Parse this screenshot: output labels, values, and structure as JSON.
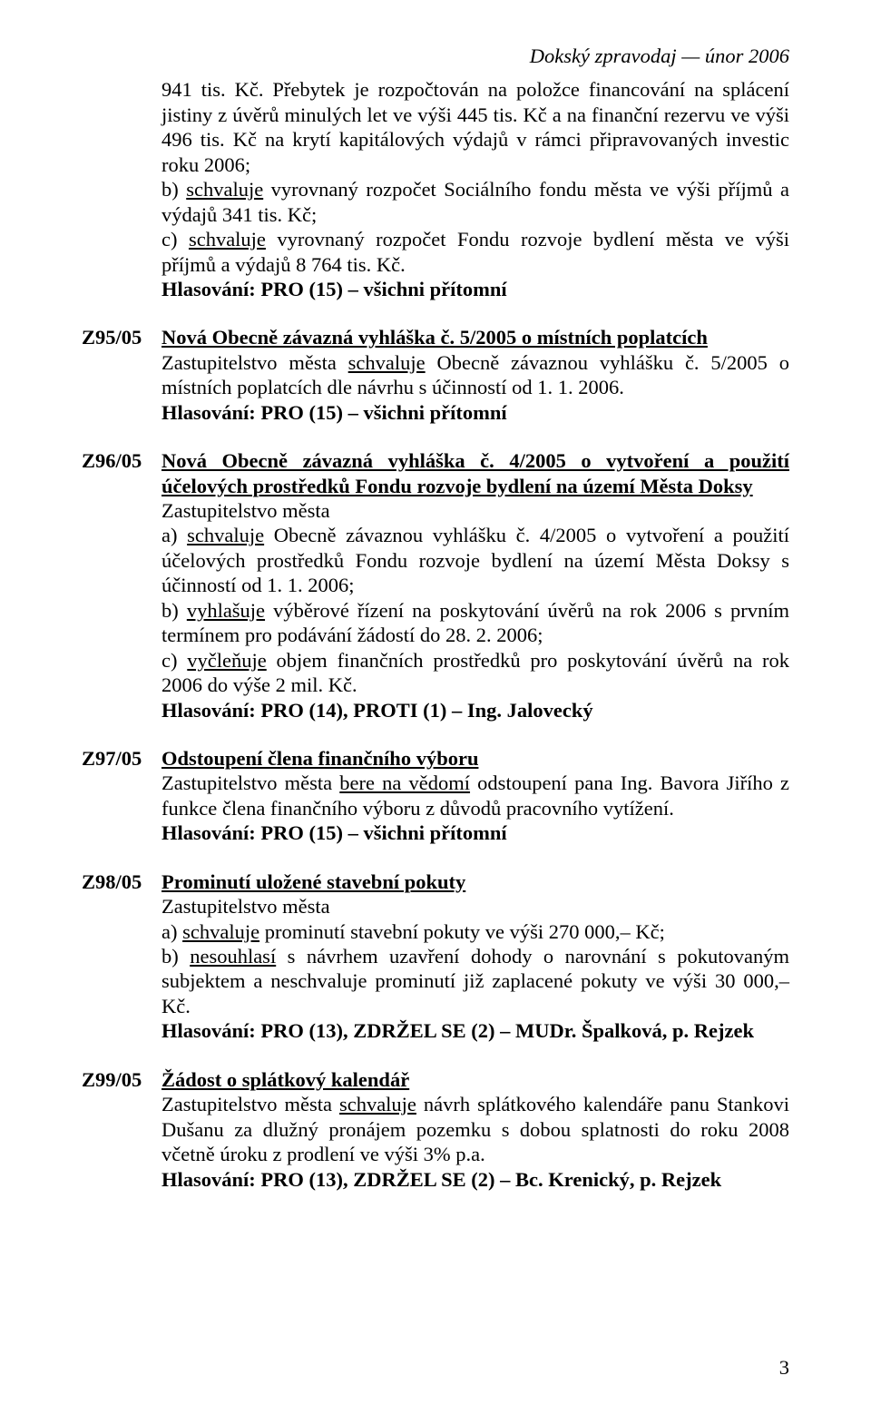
{
  "header": {
    "text": "Dokský zpravodaj — únor 2006"
  },
  "intro": {
    "p1": "941 tis. Kč. Přebytek je rozpočtován na položce financování na splácení jistiny z úvěrů minulých let ve výši 445 tis. Kč a na finanční rezervu ve výši 496 tis. Kč na krytí kapitálových výdajů v rámci připravovaných investic roku 2006;",
    "p2a": "b) ",
    "p2u": "schvaluje",
    "p2b": " vyrovnaný rozpočet Sociálního fondu města ve výši příjmů a výdajů 341 tis. Kč;",
    "p3a": "c) ",
    "p3u": "schvaluje",
    "p3b": " vyrovnaný rozpočet Fondu rozvoje bydlení města ve výši příjmů a výdajů 8 764 tis. Kč.",
    "vote": "Hlasování: PRO (15) – všichni přítomní"
  },
  "z95": {
    "id": "Z95/05",
    "title_u": "Nová Obecně závazná vyhláška č. 5/2005 o místních poplatcích",
    "body_a": "Zastupitelstvo města ",
    "body_u": "schvaluje",
    "body_b": " Obecně závaznou vyhlášku č. 5/2005 o místních poplatcích dle návrhu s účinností od 1. 1. 2006.",
    "vote": "Hlasování: PRO (15) – všichni přítomní"
  },
  "z96": {
    "id": "Z96/05",
    "title_u": "Nová Obecně závazná vyhláška č. 4/2005 o vytvoření a použití účelových prostředků Fondu rozvoje bydlení na území Města Doksy",
    "lead": "Zastupitelstvo města",
    "a_a": "a) ",
    "a_u": "schvaluje",
    "a_b": " Obecně závaznou vyhlášku č. 4/2005 o vytvoření a použití účelových prostředků Fondu rozvoje bydlení na území Města Doksy s účinností od 1. 1. 2006;",
    "b_a": "b) ",
    "b_u": "vyhlašuje",
    "b_b": " výběrové řízení na poskytování úvěrů na rok 2006 s prvním termínem pro podávání žádostí do 28. 2. 2006;",
    "c_a": "c) ",
    "c_u": "vyčleňuje",
    "c_b": " objem finančních prostředků pro poskytování úvěrů na rok 2006 do výše 2 mil. Kč.",
    "vote": "Hlasování: PRO (14), PROTI (1) – Ing. Jalovecký"
  },
  "z97": {
    "id": "Z97/05",
    "title_u": "Odstoupení člena finančního výboru",
    "body_a": "Zastupitelstvo města ",
    "body_u": "bere na vědomí",
    "body_b": " odstoupení pana Ing. Bavora Jiřího z funkce člena finančního výboru z důvodů pracovního vytížení.",
    "vote": "Hlasování: PRO (15) – všichni přítomní"
  },
  "z98": {
    "id": "Z98/05",
    "title_u": "Prominutí uložené stavební pokuty",
    "lead": "Zastupitelstvo města",
    "a_a": "a) ",
    "a_u": "schvaluje",
    "a_b": " prominutí stavební pokuty ve výši 270 000,– Kč;",
    "b_a": "b) ",
    "b_u": "nesouhlasí",
    "b_b": " s návrhem uzavření dohody o narovnání s pokutovaným subjektem a neschvaluje prominutí již zaplacené pokuty ve výši 30 000,– Kč.",
    "vote": "Hlasování: PRO (13), ZDRŽEL SE (2) – MUDr. Špalková, p. Rejzek"
  },
  "z99": {
    "id": "Z99/05",
    "title_u": "Žádost o splátkový kalendář",
    "body_a": "Zastupitelstvo města ",
    "body_u": "schvaluje",
    "body_b": " návrh splátkového kalendáře panu Stankovi Dušanu za dlužný pronájem pozemku s dobou splatnosti do roku 2008 včetně úroku z prodlení ve výši 3% p.a.",
    "vote": "Hlasování: PRO (13), ZDRŽEL SE (2) – Bc. Krenický, p. Rejzek"
  },
  "page_number": "3"
}
